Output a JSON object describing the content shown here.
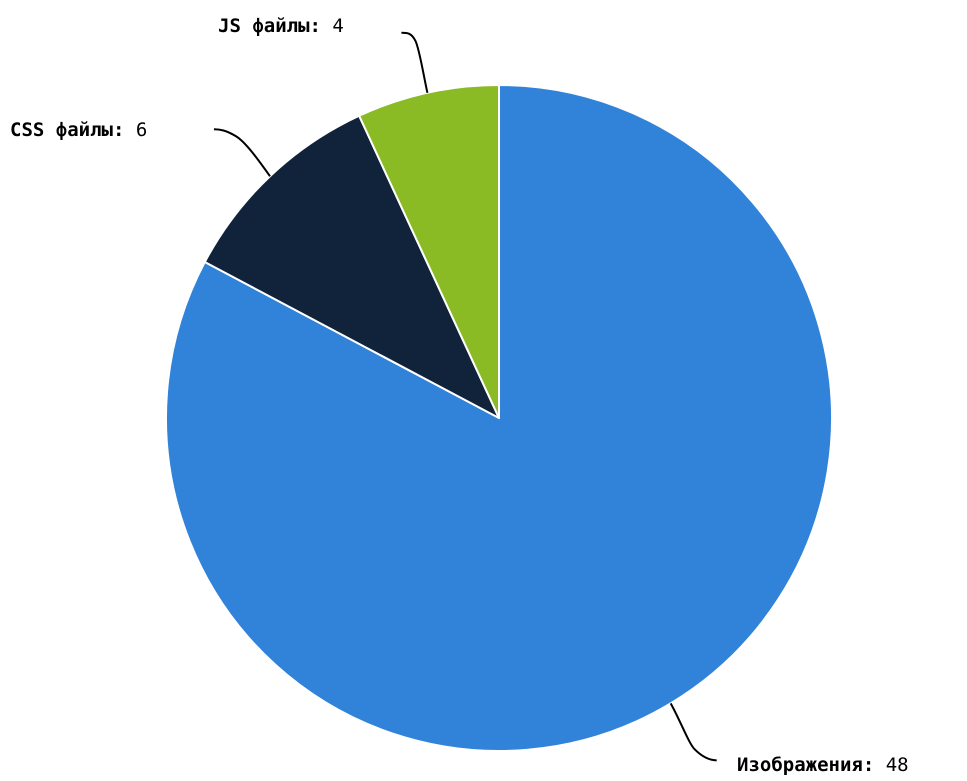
{
  "chart_data": {
    "type": "pie",
    "title": "",
    "slices": [
      {
        "label": "Изображения",
        "value": 48,
        "color": "#3182d9"
      },
      {
        "label": "CSS файлы",
        "value": 6,
        "color": "#11233a"
      },
      {
        "label": "JS файлы",
        "value": 4,
        "color": "#8aba24"
      }
    ],
    "value_separator": ":",
    "legend": "none",
    "labels": "outside with leader lines"
  }
}
